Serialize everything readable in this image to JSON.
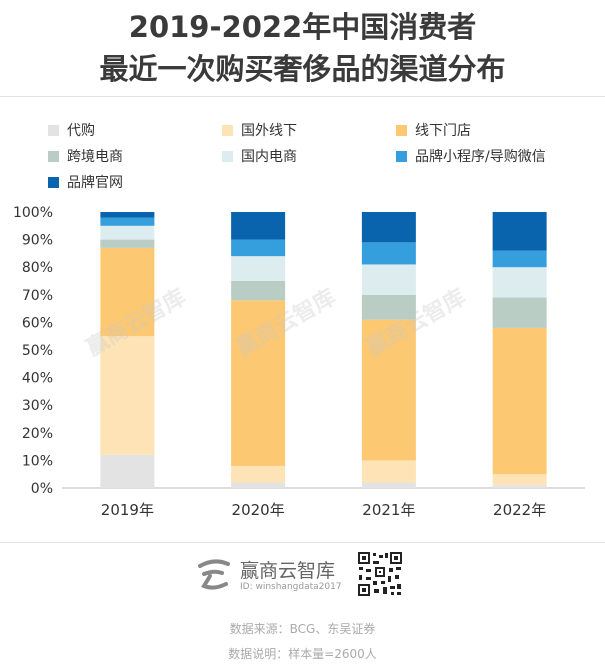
{
  "title": {
    "line1": "2019-2022年中国消费者",
    "line2": "最近一次购买奢侈品的渠道分布"
  },
  "chart_data": {
    "type": "bar",
    "stacked": true,
    "categories": [
      "2019年",
      "2020年",
      "2021年",
      "2022年"
    ],
    "series": [
      {
        "name": "代购",
        "color": "#e3e3e3",
        "values": [
          12,
          2,
          2,
          1
        ]
      },
      {
        "name": "国外线下",
        "color": "#fde3b5",
        "values": [
          43,
          6,
          8,
          4
        ]
      },
      {
        "name": "线下门店",
        "color": "#fcc872",
        "values": [
          32,
          60,
          51,
          53
        ]
      },
      {
        "name": "跨境电商",
        "color": "#b9cdc4",
        "values": [
          3,
          7,
          9,
          11
        ]
      },
      {
        "name": "国内电商",
        "color": "#dcecef",
        "values": [
          5,
          9,
          11,
          11
        ]
      },
      {
        "name": "品牌小程序/导购微信",
        "color": "#359fdd",
        "values": [
          3,
          6,
          8,
          6
        ]
      },
      {
        "name": "品牌官网",
        "color": "#0a63ad",
        "values": [
          2,
          10,
          11,
          14
        ]
      }
    ],
    "ylim": [
      0,
      100
    ],
    "yticks": [
      "0%",
      "10%",
      "20%",
      "30%",
      "40%",
      "50%",
      "60%",
      "70%",
      "80%",
      "90%",
      "100%"
    ],
    "legend_position": "top",
    "grid": false
  },
  "brand": {
    "name": "赢商云智库",
    "id": "ID: winshangdata2017",
    "icon": "brand-logo-icon",
    "qr": "qr-code-icon"
  },
  "watermark": "赢商云智库",
  "footer": {
    "source": "数据来源：BCG、东吴证券",
    "note": "数据说明：样本量=2600人"
  }
}
